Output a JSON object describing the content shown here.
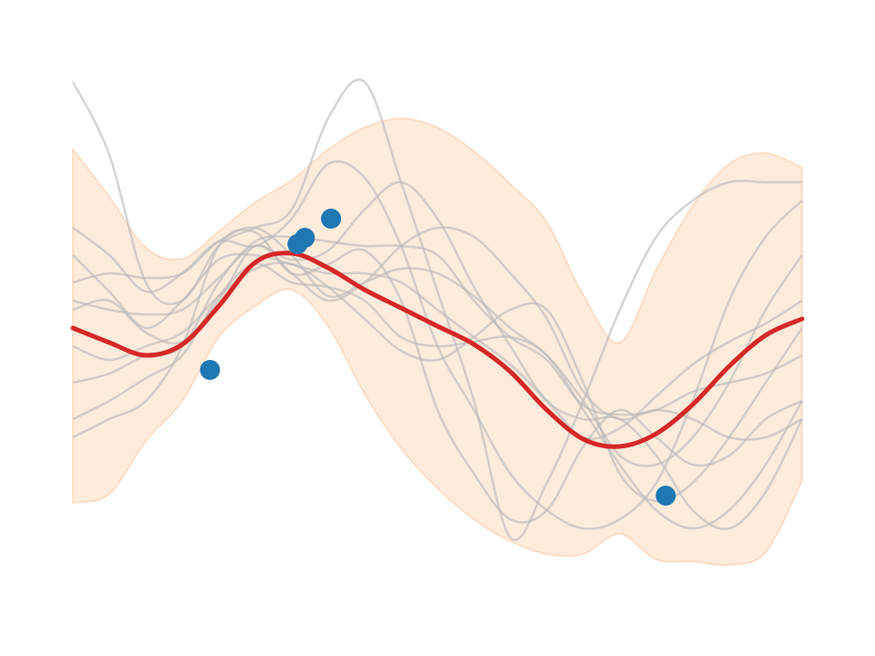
{
  "chart_data": {
    "type": "line",
    "title": "",
    "xlabel": "",
    "ylabel": "",
    "xlim": [
      0,
      1
    ],
    "ylim": [
      -3,
      3
    ],
    "axes_visible": false,
    "grid": false,
    "legend": "none",
    "colors": {
      "band_fill": "#fdebdc",
      "band_edge": "#fbd8bd",
      "samples": "#b8b8b8",
      "mean": "#d62728",
      "observations": "#1f77b4"
    },
    "x": [
      0,
      0.05,
      0.1,
      0.15,
      0.2,
      0.25,
      0.3,
      0.35,
      0.4,
      0.45,
      0.5,
      0.55,
      0.6,
      0.65,
      0.7,
      0.75,
      0.8,
      0.85,
      0.9,
      0.95,
      1
    ],
    "band": {
      "upper": [
        1.96,
        1.44,
        0.88,
        0.76,
        1.06,
        1.38,
        1.62,
        1.96,
        2.2,
        2.3,
        2.2,
        1.94,
        1.58,
        1.16,
        0.36,
        -0.16,
        0.64,
        1.34,
        1.8,
        1.92,
        1.76
      ],
      "lower": [
        -1.92,
        -1.82,
        -1.24,
        -0.8,
        -0.1,
        0.24,
        0.42,
        0.02,
        -0.72,
        -1.32,
        -1.76,
        -2.1,
        -2.34,
        -2.48,
        -2.48,
        -2.26,
        -2.54,
        -2.56,
        -2.6,
        -2.46,
        -1.68
      ]
    },
    "mean": [
      -0.0,
      -0.16,
      -0.3,
      -0.18,
      0.24,
      0.72,
      0.82,
      0.66,
      0.42,
      0.22,
      0.02,
      -0.18,
      -0.48,
      -0.9,
      -1.22,
      -1.3,
      -1.16,
      -0.84,
      -0.42,
      -0.08,
      0.1
    ],
    "series": [
      {
        "values": [
          2.7,
          1.9,
          0.5,
          0.3,
          0.9,
          1.1,
          1.3,
          2.3,
          2.7,
          1.6,
          0.4,
          -0.8,
          -2.3,
          -1.7,
          -0.8,
          0.2,
          1.0,
          1.4,
          1.6,
          1.6,
          1.6
        ]
      },
      {
        "values": [
          1.1,
          0.8,
          0.4,
          0.6,
          0.95,
          0.9,
          1.2,
          1.8,
          1.65,
          0.9,
          -0.2,
          -0.9,
          -1.6,
          -2.0,
          -2.2,
          -2.1,
          -1.7,
          -0.8,
          0.3,
          1.0,
          1.4
        ]
      },
      {
        "values": [
          -1.2,
          -1.0,
          -0.8,
          -0.2,
          0.9,
          1.05,
          0.6,
          0.7,
          0.85,
          0.3,
          -0.9,
          -1.6,
          -2.1,
          -2.0,
          -1.3,
          -0.9,
          -1.2,
          -1.5,
          -1.4,
          -1.0,
          -0.8
        ]
      },
      {
        "values": [
          0.5,
          0.6,
          0.55,
          0.6,
          0.95,
          1.1,
          0.8,
          0.35,
          0.5,
          0.65,
          0.6,
          0.35,
          0.0,
          -0.3,
          -0.8,
          -1.4,
          -1.5,
          -1.2,
          -0.6,
          0.2,
          0.8
        ]
      },
      {
        "values": [
          -0.6,
          -0.5,
          -0.3,
          -0.2,
          0.5,
          0.95,
          1.0,
          0.95,
          0.9,
          0.9,
          0.8,
          0.3,
          -0.1,
          -0.35,
          -0.85,
          -0.95,
          -0.9,
          -0.7,
          -0.6,
          -0.5,
          -0.3
        ]
      },
      {
        "values": [
          0.3,
          0.2,
          0.15,
          0.2,
          0.55,
          0.9,
          0.75,
          0.85,
          1.3,
          1.6,
          1.2,
          0.45,
          -0.2,
          -0.8,
          -1.0,
          -1.0,
          -1.4,
          -2.0,
          -2.2,
          -1.8,
          -1.0
        ]
      },
      {
        "values": [
          -1.0,
          -0.8,
          -0.55,
          -0.3,
          0.35,
          0.7,
          0.5,
          0.45,
          0.3,
          -0.1,
          -0.2,
          -0.15,
          -0.1,
          -0.3,
          -0.9,
          -1.5,
          -2.0,
          -2.2,
          -2.0,
          -1.5,
          -0.8
        ]
      },
      {
        "values": [
          0.2,
          0.3,
          -0.05,
          -0.15,
          0.3,
          0.9,
          0.6,
          0.3,
          0.5,
          0.9,
          1.1,
          1.0,
          0.6,
          0.1,
          -0.7,
          -1.0,
          -0.9,
          -1.0,
          -1.2,
          -1.2,
          -1.0
        ]
      },
      {
        "values": [
          -0.2,
          -0.35,
          -0.2,
          -0.05,
          0.35,
          0.65,
          0.7,
          0.45,
          0.1,
          -0.25,
          -0.35,
          -0.1,
          0.2,
          0.2,
          -0.6,
          -1.6,
          -1.9,
          -1.7,
          -1.2,
          -0.6,
          0.0
        ]
      },
      {
        "values": [
          0.8,
          0.4,
          0.0,
          0.3,
          0.75,
          0.8,
          0.7,
          0.6,
          0.6,
          0.5,
          0.2,
          -0.1,
          -0.4,
          -0.8,
          -1.2,
          -1.1,
          -0.75,
          -0.4,
          -0.15,
          0.05,
          0.3
        ]
      }
    ],
    "observations": [
      {
        "x": 0.188,
        "y": -0.46
      },
      {
        "x": 0.308,
        "y": 0.92
      },
      {
        "x": 0.318,
        "y": 0.99
      },
      {
        "x": 0.354,
        "y": 1.2
      },
      {
        "x": 0.813,
        "y": -1.84
      }
    ]
  }
}
